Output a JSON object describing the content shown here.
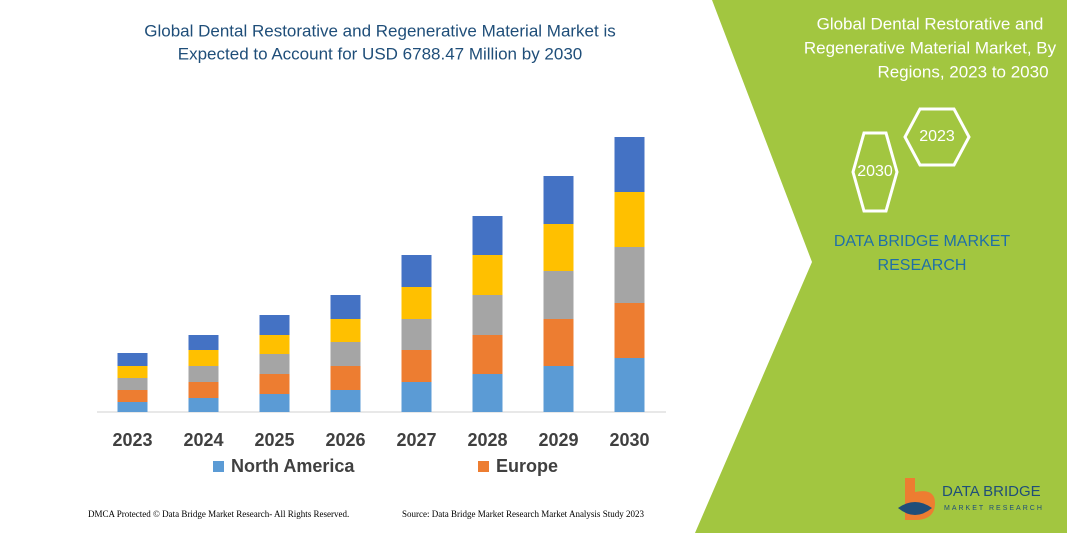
{
  "chart_data": {
    "type": "stacked_bar",
    "title": [
      "Global Dental Restorative and Regenerative Material Market is",
      "Expected to Account for USD 6788.47 Million by 2030"
    ],
    "categories": [
      "2023",
      "2024",
      "2025",
      "2026",
      "2027",
      "2028",
      "2029",
      "2030"
    ],
    "series": [
      {
        "name": "North America",
        "color": "#5b9bd5",
        "values": [
          10,
          14,
          18,
          22,
          30,
          38,
          46,
          54
        ]
      },
      {
        "name": "Europe",
        "color": "#ed7d31",
        "values": [
          12,
          16,
          20,
          24,
          32,
          39,
          47,
          55
        ]
      },
      {
        "color": "#a5a5a5",
        "values": [
          12,
          16,
          20,
          24,
          31,
          40,
          48,
          56
        ]
      },
      {
        "color": "#ffc000",
        "values": [
          12,
          16,
          19,
          23,
          32,
          40,
          47,
          55
        ]
      },
      {
        "color": "#4472c4",
        "values": [
          13,
          15,
          20,
          24,
          32,
          39,
          48,
          55
        ]
      }
    ],
    "ylim": [
      0,
      300
    ]
  },
  "side_panel": {
    "title": [
      "Global Dental Restorative and",
      "Regenerative Material Market, By",
      "Regions, 2023 to 2030"
    ],
    "hexagons": [
      "2030",
      "2023"
    ],
    "brand": [
      "DATA BRIDGE MARKET",
      "RESEARCH"
    ]
  },
  "footer": {
    "left": "DMCA Protected © Data Bridge Market Research-  All Rights Reserved.",
    "right": "Source: Data Bridge Market Research  Market Analysis Study 2023"
  },
  "logo": {
    "name": "DATA BRIDGE",
    "tagline": "MARKET RESEARCH"
  }
}
